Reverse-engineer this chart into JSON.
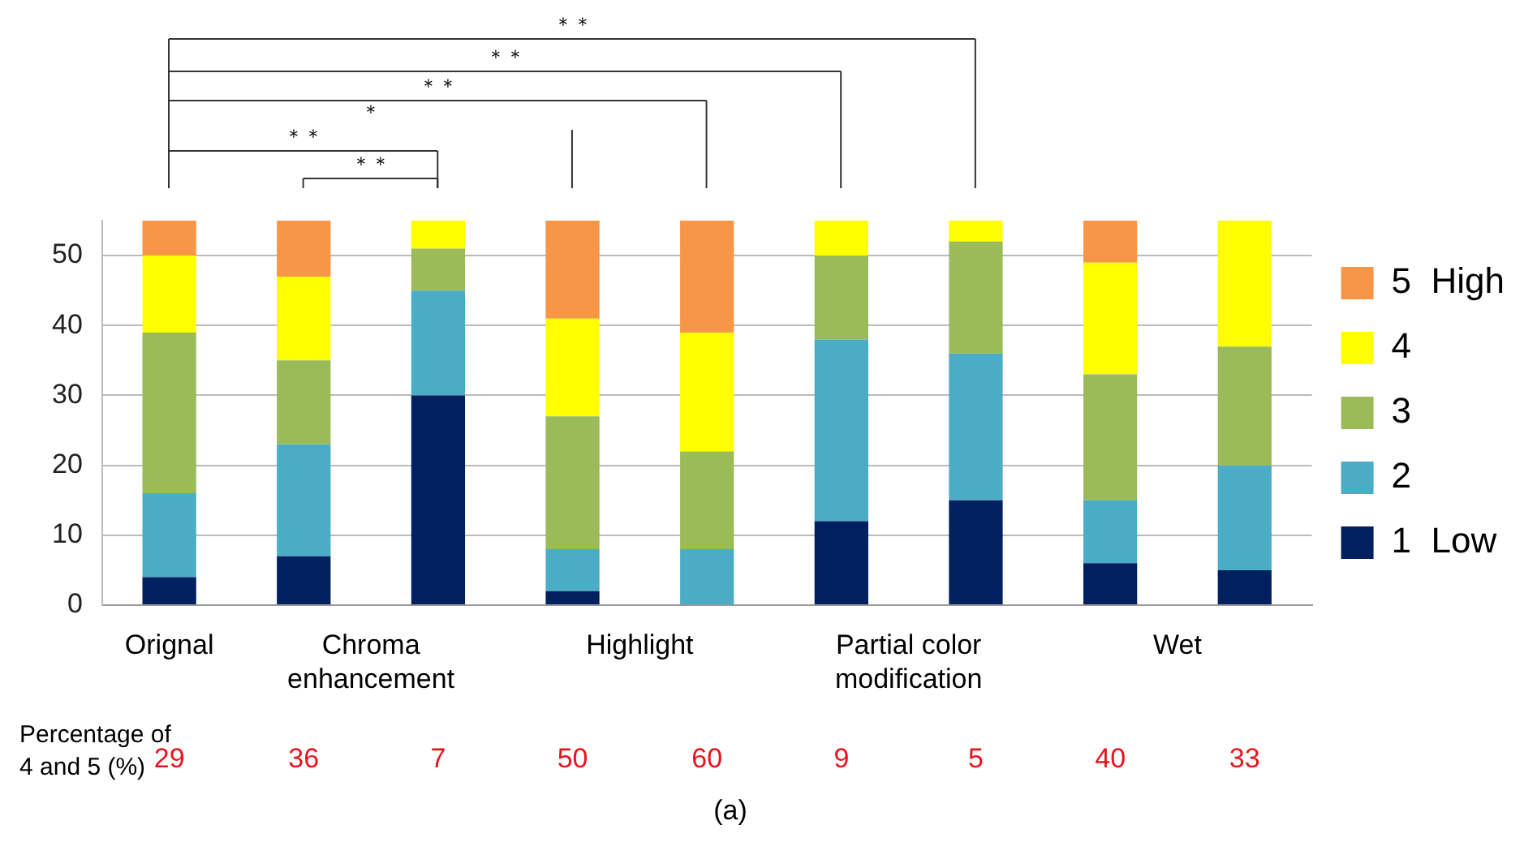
{
  "chart_data": {
    "type": "bar",
    "stacked": true,
    "categories": [
      "Orignal",
      "Chroma enhancement",
      null,
      "Highlight",
      null,
      "Partial color modification",
      null,
      "Wet",
      null
    ],
    "series": [
      {
        "name": "1  Low",
        "color": "#002060",
        "values": [
          4,
          7,
          30,
          2,
          0,
          12,
          15,
          6,
          5
        ]
      },
      {
        "name": "2",
        "color": "#4bacc6",
        "values": [
          12,
          16,
          15,
          6,
          8,
          26,
          21,
          9,
          15
        ]
      },
      {
        "name": "3",
        "color": "#9bbb59",
        "values": [
          23,
          12,
          6,
          19,
          14,
          12,
          16,
          18,
          17
        ]
      },
      {
        "name": "4",
        "color": "#ffff00",
        "values": [
          11,
          12,
          4,
          14,
          17,
          5,
          3,
          16,
          18
        ]
      },
      {
        "name": "5  High",
        "color": "#f79646",
        "values": [
          5,
          8,
          0,
          14,
          16,
          0,
          0,
          6,
          0
        ]
      }
    ],
    "ylim": [
      0,
      55
    ],
    "yticks": [
      0,
      10,
      20,
      30,
      40,
      50
    ],
    "grid": "y",
    "legend": "right",
    "annotations": [
      "＊＊",
      "＊＊",
      "＊＊",
      "＊",
      "＊＊",
      "＊＊",
      "Percentage of 4 and 5 (%)",
      "29",
      "36",
      "7",
      "50",
      "60",
      "9",
      "5",
      "40",
      "33",
      "(a)"
    ]
  }
}
